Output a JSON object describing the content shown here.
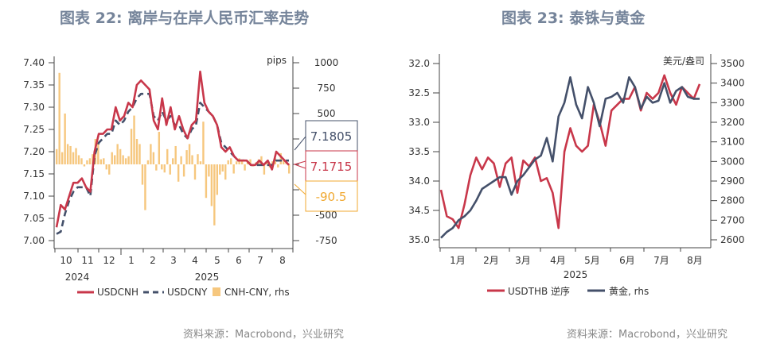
{
  "chart_data": [
    {
      "type": "line",
      "title": "图表 22: 离岸与在岸人民币汇率走势",
      "source": "资料来源：Macrobond，兴业研究",
      "ylim": [
        7.0,
        7.4
      ],
      "yticks": [
        "7.40",
        "7.35",
        "7.30",
        "7.25",
        "7.20",
        "7.15",
        "7.10",
        "7.05",
        "7.00"
      ],
      "y2lim": [
        -750,
        1000
      ],
      "y2label": "pips",
      "y2ticks": [
        "1000",
        "750",
        "500",
        "-500",
        "-750"
      ],
      "xticks": [
        "10",
        "11",
        "12",
        "1",
        "2",
        "3",
        "4",
        "5",
        "6",
        "7",
        "8"
      ],
      "years": [
        "2024",
        "2025"
      ],
      "legend": [
        "USDCNH",
        "USDCNY",
        "CNH-CNY, rhs"
      ],
      "callouts": [
        "7.1805",
        "7.1715",
        "-90.5"
      ],
      "colors": {
        "cnh": "#c8374a",
        "cny": "#44506a",
        "spread": "#f6c77e"
      },
      "series": [
        {
          "name": "USDCNH",
          "values": [
            7.03,
            7.08,
            7.07,
            7.1,
            7.13,
            7.13,
            7.14,
            7.12,
            7.11,
            7.2,
            7.24,
            7.24,
            7.25,
            7.25,
            7.3,
            7.27,
            7.28,
            7.31,
            7.3,
            7.35,
            7.36,
            7.35,
            7.34,
            7.27,
            7.25,
            7.32,
            7.26,
            7.3,
            7.25,
            7.28,
            7.25,
            7.23,
            7.26,
            7.27,
            7.38,
            7.31,
            7.29,
            7.28,
            7.26,
            7.21,
            7.2,
            7.21,
            7.19,
            7.18,
            7.18,
            7.18,
            7.17,
            7.17,
            7.18,
            7.17,
            7.18,
            7.16,
            7.2,
            7.19,
            7.18,
            7.17
          ]
        },
        {
          "name": "USDCNY",
          "values": [
            7.015,
            7.02,
            7.06,
            7.09,
            7.11,
            7.12,
            7.12,
            7.12,
            7.1,
            7.19,
            7.22,
            7.23,
            7.24,
            7.24,
            7.27,
            7.26,
            7.27,
            7.29,
            7.3,
            7.32,
            7.33,
            7.33,
            7.33,
            7.28,
            7.27,
            7.29,
            7.27,
            7.28,
            7.26,
            7.26,
            7.24,
            7.23,
            7.25,
            7.26,
            7.31,
            7.3,
            7.29,
            7.28,
            7.26,
            7.22,
            7.21,
            7.2,
            7.19,
            7.18,
            7.18,
            7.18,
            7.17,
            7.17,
            7.17,
            7.17,
            7.17,
            7.17,
            7.18,
            7.18,
            7.18,
            7.18
          ]
        },
        {
          "name": "CNH-CNY, rhs",
          "values": [
            150,
            900,
            120,
            500,
            200,
            180,
            120,
            160,
            90,
            60,
            -20,
            40,
            60,
            100,
            250,
            200,
            50,
            60,
            -50,
            -100,
            120,
            90,
            200,
            150,
            90,
            60,
            80,
            350,
            480,
            250,
            200,
            -200,
            -450,
            40,
            200,
            120,
            -60,
            320,
            -50,
            -80,
            150,
            -100,
            60,
            180,
            -170,
            80,
            -120,
            140,
            200,
            90,
            -150,
            100,
            30,
            420,
            -330,
            -120,
            -410,
            -600,
            -300,
            -100,
            -70,
            -150,
            40,
            60,
            -90,
            30,
            60,
            30,
            -60,
            40,
            50,
            -20,
            20,
            50,
            80,
            -100,
            20,
            -30,
            30,
            60,
            -30,
            110,
            40,
            30,
            -90
          ]
        }
      ]
    },
    {
      "type": "line",
      "title": "图表 23: 泰铢与黄金",
      "source": "资料来源：Macrobond，兴业研究",
      "ylim": [
        35.0,
        32.0
      ],
      "yticks": [
        "32.0",
        "32.5",
        "33.0",
        "33.5",
        "34.0",
        "34.5",
        "35.0"
      ],
      "y2lim": [
        2600,
        3500
      ],
      "y2label": "美元/盎司",
      "y2ticks": [
        "3500",
        "3400",
        "3300",
        "3200",
        "3100",
        "3000",
        "2900",
        "2800",
        "2700",
        "2600"
      ],
      "xticks": [
        "1月",
        "2月",
        "3月",
        "4月",
        "5月",
        "6月",
        "7月",
        "8月"
      ],
      "years": [
        "2025"
      ],
      "legend": [
        "USDTHB 逆序",
        "黄金, rhs"
      ],
      "colors": {
        "thb": "#c8374a",
        "gold": "#44506a"
      },
      "series": [
        {
          "name": "USDTHB 逆序",
          "values": [
            34.15,
            34.6,
            34.65,
            34.8,
            34.4,
            33.9,
            33.6,
            33.8,
            33.6,
            33.7,
            34.1,
            33.7,
            33.6,
            34.2,
            33.65,
            33.75,
            33.6,
            34.0,
            33.95,
            34.2,
            34.8,
            33.5,
            33.1,
            33.4,
            33.5,
            33.4,
            32.7,
            33.0,
            33.4,
            32.8,
            32.7,
            32.6,
            32.6,
            32.4,
            32.8,
            32.5,
            32.6,
            32.5,
            32.2,
            32.5,
            32.7,
            32.4,
            32.5,
            32.6,
            32.35
          ]
        },
        {
          "name": "黄金, rhs",
          "values": [
            2610,
            2640,
            2660,
            2700,
            2720,
            2750,
            2800,
            2860,
            2880,
            2900,
            2920,
            2920,
            2830,
            2900,
            2930,
            2970,
            3010,
            3030,
            3120,
            3000,
            3230,
            3300,
            3430,
            3290,
            3220,
            3380,
            3300,
            3180,
            3320,
            3330,
            3350,
            3300,
            3430,
            3380,
            3270,
            3330,
            3300,
            3310,
            3400,
            3300,
            3360,
            3380,
            3330,
            3320,
            3320
          ]
        }
      ]
    }
  ]
}
